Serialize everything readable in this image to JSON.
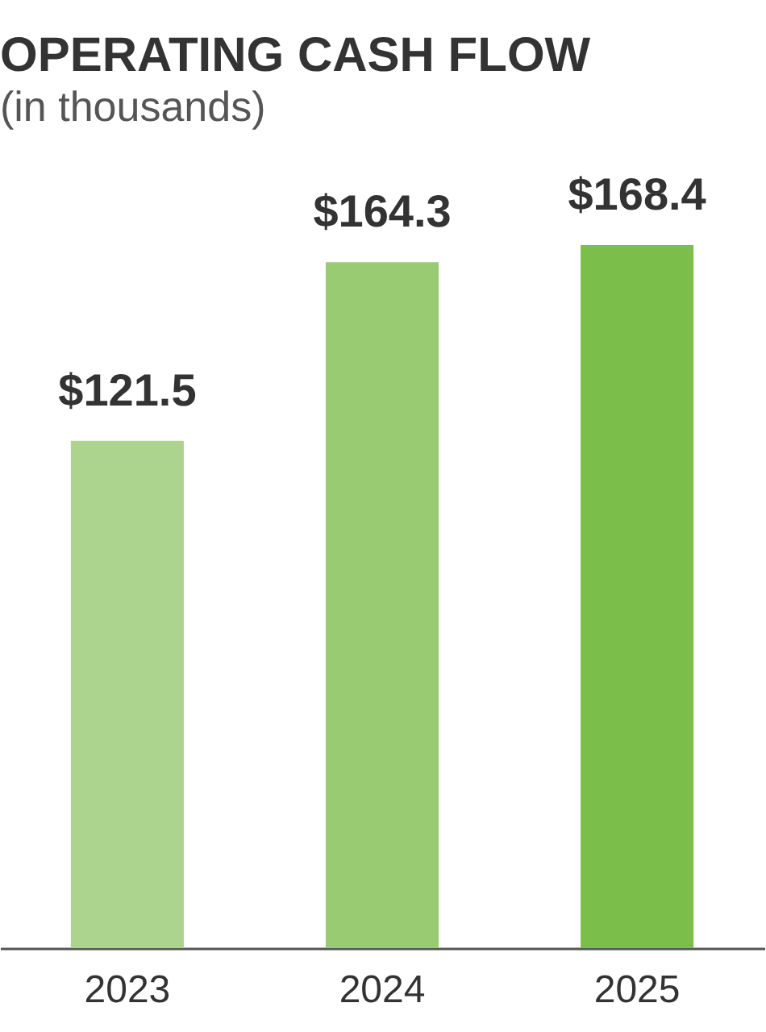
{
  "chart_data": {
    "type": "bar",
    "title": "OPERATING CASH FLOW",
    "subtitle": "(in thousands)",
    "categories": [
      "2023",
      "2024",
      "2025"
    ],
    "values": [
      121.5,
      164.3,
      168.4
    ],
    "colors": [
      "#acd48f",
      "#98cb72",
      "#7bbf4a"
    ],
    "value_labels": [
      "$121.5",
      "$164.3",
      "$168.4"
    ]
  }
}
